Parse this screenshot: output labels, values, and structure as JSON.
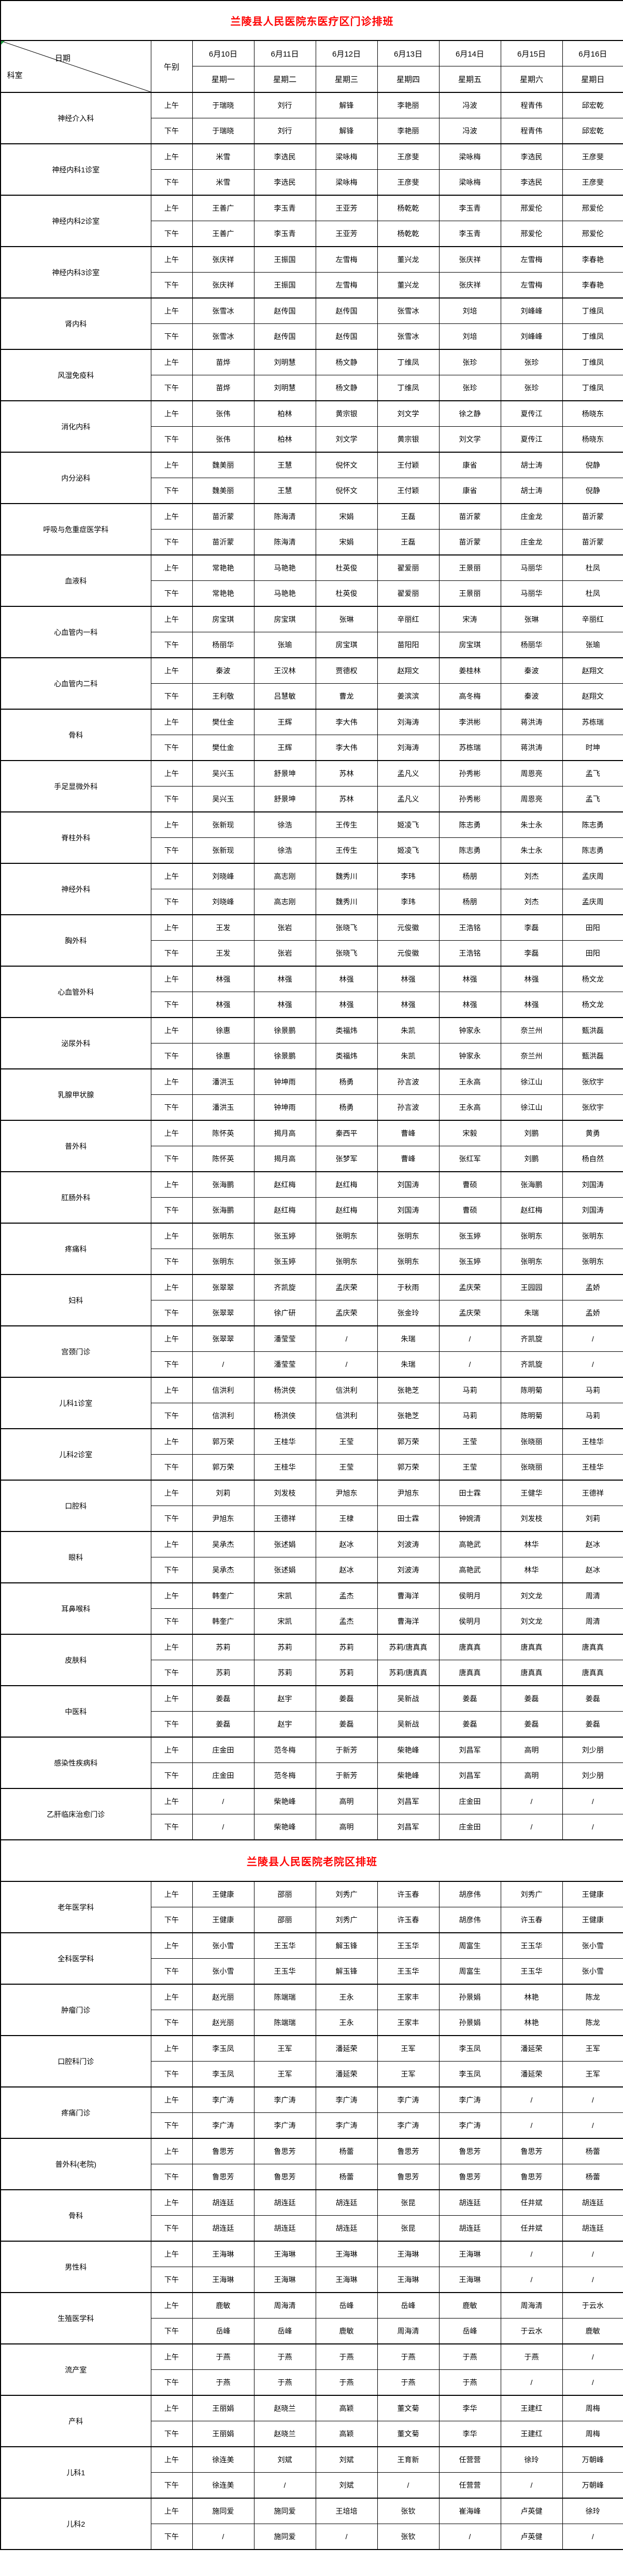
{
  "page": {
    "title_color": "#FF0000",
    "border_color": "#000000",
    "background": "#FFFFFF"
  },
  "labels": {
    "am": "上午",
    "pm": "下午"
  },
  "header": {
    "corner_top": "日期",
    "corner_bottom": "科室",
    "noon_label": "午别",
    "dates": [
      "6月10日",
      "6月11日",
      "6月12日",
      "6月13日",
      "6月14日",
      "6月15日",
      "6月16日"
    ],
    "weekdays": [
      "星期一",
      "星期二",
      "星期三",
      "星期四",
      "星期五",
      "星期六",
      "星期日"
    ]
  },
  "sections": [
    {
      "title": "兰陵县人民医院东医疗区门诊排班",
      "has_header": true,
      "departments": [
        {
          "name": "神经介入科",
          "am": [
            "于瑞晓",
            "刘行",
            "解锋",
            "李艳丽",
            "冯波",
            "程青伟",
            "邱宏乾"
          ],
          "pm": [
            "于瑞晓",
            "刘行",
            "解锋",
            "李艳丽",
            "冯波",
            "程青伟",
            "邱宏乾"
          ]
        },
        {
          "name": "神经内科1诊室",
          "am": [
            "米雪",
            "李选民",
            "梁咏梅",
            "王彦斐",
            "梁咏梅",
            "李选民",
            "王彦斐"
          ],
          "pm": [
            "米雪",
            "李选民",
            "梁咏梅",
            "王彦斐",
            "梁咏梅",
            "李选民",
            "王彦斐"
          ]
        },
        {
          "name": "神经内科2诊室",
          "am": [
            "王善广",
            "李玉青",
            "王亚芳",
            "杨乾乾",
            "李玉青",
            "邢爱伦",
            "邢爱伦"
          ],
          "pm": [
            "王善广",
            "李玉青",
            "王亚芳",
            "杨乾乾",
            "李玉青",
            "邢爱伦",
            "邢爱伦"
          ]
        },
        {
          "name": "神经内科3诊室",
          "am": [
            "张庆祥",
            "王振国",
            "左雪梅",
            "董兴龙",
            "张庆祥",
            "左雪梅",
            "李春艳"
          ],
          "pm": [
            "张庆祥",
            "王振国",
            "左雪梅",
            "董兴龙",
            "张庆祥",
            "左雪梅",
            "李春艳"
          ]
        },
        {
          "name": "肾内科",
          "am": [
            "张雪冰",
            "赵传国",
            "赵传国",
            "张雪冰",
            "刘培",
            "刘峰峰",
            "丁维凤"
          ],
          "pm": [
            "张雪冰",
            "赵传国",
            "赵传国",
            "张雪冰",
            "刘培",
            "刘峰峰",
            "丁维凤"
          ]
        },
        {
          "name": "风湿免疫科",
          "am": [
            "苗烨",
            "刘明慧",
            "杨文静",
            "丁维凤",
            "张珍",
            "张珍",
            "丁维凤"
          ],
          "pm": [
            "苗烨",
            "刘明慧",
            "杨文静",
            "丁维凤",
            "张珍",
            "张珍",
            "丁维凤"
          ]
        },
        {
          "name": "消化内科",
          "am": [
            "张伟",
            "柏林",
            "黄宗银",
            "刘文学",
            "徐之静",
            "夏传江",
            "杨晓东"
          ],
          "pm": [
            "张伟",
            "柏林",
            "刘文学",
            "黄宗银",
            "刘文学",
            "夏传江",
            "杨晓东"
          ]
        },
        {
          "name": "内分泌科",
          "am": [
            "魏美丽",
            "王慧",
            "倪怀文",
            "王付颖",
            "康省",
            "胡士涛",
            "倪静"
          ],
          "pm": [
            "魏美丽",
            "王慧",
            "倪怀文",
            "王付颖",
            "康省",
            "胡士涛",
            "倪静"
          ]
        },
        {
          "name": "呼吸与危重症医学科",
          "am": [
            "苗沂蒙",
            "陈海清",
            "宋娟",
            "王磊",
            "苗沂蒙",
            "庄金龙",
            "苗沂蒙"
          ],
          "pm": [
            "苗沂蒙",
            "陈海清",
            "宋娟",
            "王磊",
            "苗沂蒙",
            "庄金龙",
            "苗沂蒙"
          ]
        },
        {
          "name": "血液科",
          "am": [
            "常艳艳",
            "马艳艳",
            "杜英俊",
            "翟爱丽",
            "王景丽",
            "马丽华",
            "杜凤"
          ],
          "pm": [
            "常艳艳",
            "马艳艳",
            "杜英俊",
            "翟爱丽",
            "王景丽",
            "马丽华",
            "杜凤"
          ]
        },
        {
          "name": "心血管内一科",
          "am": [
            "房宝琪",
            "房宝琪",
            "张琳",
            "辛丽红",
            "宋涛",
            "张琳",
            "辛丽红"
          ],
          "pm": [
            "杨丽华",
            "张瑜",
            "房宝琪",
            "苗阳阳",
            "房宝琪",
            "杨丽华",
            "张瑜"
          ]
        },
        {
          "name": "心血管内二科",
          "am": [
            "秦波",
            "王汉林",
            "贾德权",
            "赵翔文",
            "姜桂林",
            "秦波",
            "赵翔文"
          ],
          "pm": [
            "王利敬",
            "吕慧敏",
            "曹龙",
            "姜滨滨",
            "高冬梅",
            "秦波",
            "赵翔文"
          ]
        },
        {
          "name": "骨科",
          "am": [
            "樊仕金",
            "王辉",
            "李大伟",
            "刘海涛",
            "李洪彬",
            "蒋洪涛",
            "苏栋瑞"
          ],
          "pm": [
            "樊仕金",
            "王辉",
            "李大伟",
            "刘海涛",
            "苏栋瑞",
            "蒋洪涛",
            "时坤"
          ]
        },
        {
          "name": "手足显微外科",
          "am": [
            "吴兴玉",
            "舒景坤",
            "苏林",
            "孟凡义",
            "孙秀彬",
            "周恩亮",
            "孟飞"
          ],
          "pm": [
            "吴兴玉",
            "舒景坤",
            "苏林",
            "孟凡义",
            "孙秀彬",
            "周恩亮",
            "孟飞"
          ]
        },
        {
          "name": "脊柱外科",
          "am": [
            "张新现",
            "徐浩",
            "王传生",
            "姬凌飞",
            "陈志勇",
            "朱士永",
            "陈志勇"
          ],
          "pm": [
            "张新现",
            "徐浩",
            "王传生",
            "姬凌飞",
            "陈志勇",
            "朱士永",
            "陈志勇"
          ]
        },
        {
          "name": "神经外科",
          "am": [
            "刘晓峰",
            "高志刚",
            "魏秀川",
            "李玮",
            "杨朋",
            "刘杰",
            "孟庆周"
          ],
          "pm": [
            "刘晓峰",
            "高志刚",
            "魏秀川",
            "李玮",
            "杨朋",
            "刘杰",
            "孟庆周"
          ]
        },
        {
          "name": "胸外科",
          "am": [
            "王发",
            "张岩",
            "张晓飞",
            "元俊徽",
            "王浩铭",
            "李磊",
            "田阳"
          ],
          "pm": [
            "王发",
            "张岩",
            "张晓飞",
            "元俊徽",
            "王浩铭",
            "李磊",
            "田阳"
          ]
        },
        {
          "name": "心血管外科",
          "am": [
            "林强",
            "林强",
            "林强",
            "林强",
            "林强",
            "林强",
            "杨文龙"
          ],
          "pm": [
            "林强",
            "林强",
            "林强",
            "林强",
            "林强",
            "林强",
            "杨文龙"
          ]
        },
        {
          "name": "泌尿外科",
          "am": [
            "徐惠",
            "徐景鹏",
            "类福炜",
            "朱凯",
            "钟家永",
            "奈兰州",
            "甄洪磊"
          ],
          "pm": [
            "徐惠",
            "徐景鹏",
            "类福炜",
            "朱凯",
            "钟家永",
            "奈兰州",
            "甄洪磊"
          ]
        },
        {
          "name": "乳腺甲状腺",
          "am": [
            "潘洪玉",
            "钟坤雨",
            "杨勇",
            "孙言波",
            "王永高",
            "徐江山",
            "张欣宇"
          ],
          "pm": [
            "潘洪玉",
            "钟坤雨",
            "杨勇",
            "孙言波",
            "王永高",
            "徐江山",
            "张欣宇"
          ]
        },
        {
          "name": "普外科",
          "am": [
            "陈怀英",
            "揭月高",
            "秦西平",
            "曹峰",
            "宋毅",
            "刘鹏",
            "黄勇"
          ],
          "pm": [
            "陈怀英",
            "揭月高",
            "张梦军",
            "曹峰",
            "张红军",
            "刘鹏",
            "杨自然"
          ]
        },
        {
          "name": "肛肠外科",
          "am": [
            "张海鹏",
            "赵红梅",
            "赵红梅",
            "刘国涛",
            "曹硕",
            "张海鹏",
            "刘国涛"
          ],
          "pm": [
            "张海鹏",
            "赵红梅",
            "赵红梅",
            "刘国涛",
            "曹硕",
            "赵红梅",
            "刘国涛"
          ]
        },
        {
          "name": "疼痛科",
          "am": [
            "张明东",
            "张玉婷",
            "张明东",
            "张明东",
            "张玉婷",
            "张明东",
            "张明东"
          ],
          "pm": [
            "张明东",
            "张玉婷",
            "张明东",
            "张明东",
            "张玉婷",
            "张明东",
            "张明东"
          ]
        },
        {
          "name": "妇科",
          "am": [
            "张翠翠",
            "齐凯旋",
            "孟庆荣",
            "于秋雨",
            "孟庆荣",
            "王园园",
            "孟娇"
          ],
          "pm": [
            "张翠翠",
            "徐广研",
            "孟庆荣",
            "张金玲",
            "孟庆荣",
            "朱瑞",
            "孟娇"
          ]
        },
        {
          "name": "宫颈门诊",
          "am": [
            "张翠翠",
            "潘莹莹",
            "/",
            "朱瑞",
            "/",
            "齐凯旋",
            "/"
          ],
          "pm": [
            "/",
            "潘莹莹",
            "/",
            "朱瑞",
            "/",
            "齐凯旋",
            "/"
          ]
        },
        {
          "name": "儿科1诊室",
          "am": [
            "信洪利",
            "杨洪侠",
            "信洪利",
            "张艳芝",
            "马莉",
            "陈明菊",
            "马莉"
          ],
          "pm": [
            "信洪利",
            "杨洪侠",
            "信洪利",
            "张艳芝",
            "马莉",
            "陈明菊",
            "马莉"
          ]
        },
        {
          "name": "儿科2诊室",
          "am": [
            "郭万荣",
            "王桂华",
            "王莹",
            "郭万荣",
            "王莹",
            "张晓丽",
            "王桂华"
          ],
          "pm": [
            "郭万荣",
            "王桂华",
            "王莹",
            "郭万荣",
            "王莹",
            "张晓丽",
            "王桂华"
          ]
        },
        {
          "name": "口腔科",
          "am": [
            "刘莉",
            "刘发枝",
            "尹旭东",
            "尹旭东",
            "田士霖",
            "王健华",
            "王德祥"
          ],
          "pm": [
            "尹旭东",
            "王德祥",
            "王棣",
            "田士霖",
            "钟婉清",
            "刘发枝",
            "刘莉"
          ]
        },
        {
          "name": "眼科",
          "am": [
            "吴承杰",
            "张述娟",
            "赵冰",
            "刘波涛",
            "高艳武",
            "林华",
            "赵冰"
          ],
          "pm": [
            "吴承杰",
            "张述娟",
            "赵冰",
            "刘波涛",
            "高艳武",
            "林华",
            "赵冰"
          ]
        },
        {
          "name": "耳鼻喉科",
          "am": [
            "韩奎广",
            "宋凯",
            "孟杰",
            "曹海洋",
            "侯明月",
            "刘文龙",
            "周清"
          ],
          "pm": [
            "韩奎广",
            "宋凯",
            "孟杰",
            "曹海洋",
            "侯明月",
            "刘文龙",
            "周清"
          ]
        },
        {
          "name": "皮肤科",
          "am": [
            "苏莉",
            "苏莉",
            "苏莉",
            "苏莉/唐真真",
            "唐真真",
            "唐真真",
            "唐真真"
          ],
          "pm": [
            "苏莉",
            "苏莉",
            "苏莉",
            "苏莉/唐真真",
            "唐真真",
            "唐真真",
            "唐真真"
          ]
        },
        {
          "name": "中医科",
          "am": [
            "姜磊",
            "赵宇",
            "姜磊",
            "吴新战",
            "姜磊",
            "姜磊",
            "姜磊"
          ],
          "pm": [
            "姜磊",
            "赵宇",
            "姜磊",
            "吴新战",
            "姜磊",
            "姜磊",
            "姜磊"
          ]
        },
        {
          "name": "感染性疾病科",
          "am": [
            "庄金田",
            "范冬梅",
            "于新芳",
            "柴艳峰",
            "刘昌军",
            "高明",
            "刘少朋"
          ],
          "pm": [
            "庄金田",
            "范冬梅",
            "于新芳",
            "柴艳峰",
            "刘昌军",
            "高明",
            "刘少朋"
          ]
        },
        {
          "name": "乙肝临床治愈门诊",
          "am": [
            "/",
            "柴艳峰",
            "高明",
            "刘昌军",
            "庄金田",
            "/",
            "/"
          ],
          "pm": [
            "/",
            "柴艳峰",
            "高明",
            "刘昌军",
            "庄金田",
            "/",
            "/"
          ]
        }
      ]
    },
    {
      "title": "兰陵县人民医院老院区排班",
      "has_header": false,
      "departments": [
        {
          "name": "老年医学科",
          "am": [
            "王健康",
            "邵丽",
            "刘秀广",
            "许玉春",
            "胡彦伟",
            "刘秀广",
            "王健康"
          ],
          "pm": [
            "王健康",
            "邵丽",
            "刘秀广",
            "许玉春",
            "胡彦伟",
            "许玉春",
            "王健康"
          ]
        },
        {
          "name": "全科医学科",
          "am": [
            "张小雪",
            "王玉华",
            "解玉锋",
            "王玉华",
            "周富生",
            "王玉华",
            "张小雪"
          ],
          "pm": [
            "张小雪",
            "王玉华",
            "解玉锋",
            "王玉华",
            "周富生",
            "王玉华",
            "张小雪"
          ]
        },
        {
          "name": "肿瘤门诊",
          "am": [
            "赵光丽",
            "陈端瑞",
            "王永",
            "王家丰",
            "孙景娟",
            "林艳",
            "陈龙"
          ],
          "pm": [
            "赵光丽",
            "陈端瑞",
            "王永",
            "王家丰",
            "孙景娟",
            "林艳",
            "陈龙"
          ]
        },
        {
          "name": "口腔科门诊",
          "am": [
            "李玉凤",
            "王军",
            "潘延荣",
            "王军",
            "李玉凤",
            "潘延荣",
            "王军"
          ],
          "pm": [
            "李玉凤",
            "王军",
            "潘延荣",
            "王军",
            "李玉凤",
            "潘延荣",
            "王军"
          ]
        },
        {
          "name": "疼痛门诊",
          "am": [
            "李广涛",
            "李广涛",
            "李广涛",
            "李广涛",
            "李广涛",
            "/",
            "/"
          ],
          "pm": [
            "李广涛",
            "李广涛",
            "李广涛",
            "李广涛",
            "李广涛",
            "/",
            "/"
          ]
        },
        {
          "name": "普外科(老院)",
          "am": [
            "鲁思芳",
            "鲁思芳",
            "杨蕾",
            "鲁思芳",
            "鲁思芳",
            "鲁思芳",
            "杨蕾"
          ],
          "pm": [
            "鲁思芳",
            "鲁思芳",
            "杨蕾",
            "鲁思芳",
            "鲁思芳",
            "鲁思芳",
            "杨蕾"
          ]
        },
        {
          "name": "骨科",
          "am": [
            "胡连廷",
            "胡连廷",
            "胡连廷",
            "张昆",
            "胡连廷",
            "任井斌",
            "胡连廷"
          ],
          "pm": [
            "胡连廷",
            "胡连廷",
            "胡连廷",
            "张昆",
            "胡连廷",
            "任井斌",
            "胡连廷"
          ]
        },
        {
          "name": "男性科",
          "am": [
            "王海琳",
            "王海琳",
            "王海琳",
            "王海琳",
            "王海琳",
            "/",
            "/"
          ],
          "pm": [
            "王海琳",
            "王海琳",
            "王海琳",
            "王海琳",
            "王海琳",
            "/",
            "/"
          ]
        },
        {
          "name": "生殖医学科",
          "am": [
            "鹿敏",
            "周海清",
            "岳峰",
            "岳峰",
            "鹿敏",
            "周海清",
            "于云水"
          ],
          "pm": [
            "岳峰",
            "岳峰",
            "鹿敏",
            "周海清",
            "岳峰",
            "于云水",
            "鹿敏"
          ]
        },
        {
          "name": "流产室",
          "am": [
            "于燕",
            "于燕",
            "于燕",
            "于燕",
            "于燕",
            "于燕",
            "/"
          ],
          "pm": [
            "于燕",
            "于燕",
            "于燕",
            "于燕",
            "于燕",
            "/",
            "/"
          ]
        },
        {
          "name": "产科",
          "am": [
            "王丽娟",
            "赵晓兰",
            "高颖",
            "董文菊",
            "李华",
            "王建红",
            "周梅"
          ],
          "pm": [
            "王丽娟",
            "赵晓兰",
            "高颖",
            "董文菊",
            "李华",
            "王建红",
            "周梅"
          ]
        },
        {
          "name": "儿科1",
          "am": [
            "徐连美",
            "刘斌",
            "刘斌",
            "王育新",
            "任营营",
            "徐玲",
            "万朝峰"
          ],
          "pm": [
            "徐连美",
            "/",
            "刘斌",
            "/",
            "任营营",
            "/",
            "万朝峰"
          ]
        },
        {
          "name": "儿科2",
          "am": [
            "施同爱",
            "施同爱",
            "王培培",
            "张钦",
            "崔海峰",
            "卢英健",
            "徐玲"
          ],
          "pm": [
            "/",
            "施同爱",
            "/",
            "张钦",
            "/",
            "卢英健",
            "/"
          ]
        }
      ]
    }
  ]
}
